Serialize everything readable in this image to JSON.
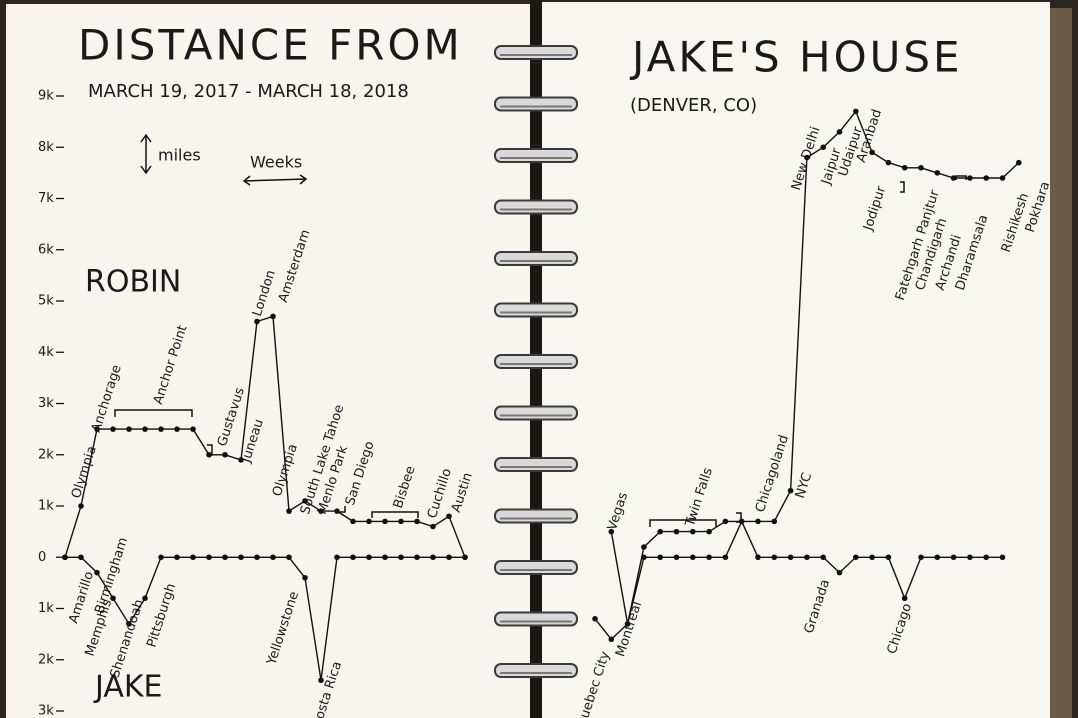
{
  "chart_data": {
    "type": "line",
    "title": [
      "DISTANCE FROM",
      "JAKE'S HOUSE"
    ],
    "subtitle": "MARCH 19, 2017 - MARCH 18, 2018",
    "location": "(DENVER, CO)",
    "ylabel": "miles",
    "xlabel": "Weeks",
    "ylim": [
      -3000,
      9000
    ],
    "yticks": [
      {
        "value": 9000,
        "label": "9k"
      },
      {
        "value": 8000,
        "label": "8k"
      },
      {
        "value": 7000,
        "label": "7k"
      },
      {
        "value": 6000,
        "label": "6k"
      },
      {
        "value": 5000,
        "label": "5k"
      },
      {
        "value": 4000,
        "label": "4k"
      },
      {
        "value": 3000,
        "label": "3k"
      },
      {
        "value": 2000,
        "label": "2k"
      },
      {
        "value": 1000,
        "label": "1k"
      },
      0,
      {
        "value": -1000,
        "label": "1k"
      },
      {
        "value": -2000,
        "label": "2k"
      },
      {
        "value": -3000,
        "label": "3k"
      }
    ],
    "series": [
      {
        "name": "ROBIN",
        "color": "#111111",
        "values": [
          0,
          1000,
          2500,
          2500,
          2500,
          2500,
          2500,
          2500,
          2500,
          2000,
          2000,
          1900,
          4600,
          4700,
          900,
          1100,
          900,
          900,
          700,
          700,
          700,
          700,
          700,
          600,
          800,
          0,
          null,
          500,
          -1300,
          200,
          500,
          500,
          500,
          500,
          700,
          700,
          700,
          700,
          1300,
          7800,
          8000,
          8300,
          8700,
          7900,
          7700,
          7600,
          7600,
          7500,
          7400,
          7400,
          7400,
          7400,
          7700
        ]
      },
      {
        "name": "JAKE",
        "color": "#111111",
        "values": [
          0,
          0,
          -300,
          -800,
          -1300,
          -800,
          0,
          0,
          0,
          0,
          0,
          0,
          0,
          0,
          0,
          -400,
          -2400,
          0,
          0,
          0,
          0,
          0,
          0,
          0,
          0,
          0,
          -1200,
          -1600,
          -1300,
          0,
          0,
          0,
          0,
          0,
          0,
          700,
          0,
          0,
          0,
          0,
          0,
          -300,
          0,
          0,
          0,
          -800,
          0,
          0,
          0,
          0,
          0,
          0,
          null
        ]
      }
    ],
    "annotations": [
      "Olympia",
      "Anchorage",
      "Anchor Point",
      "Gustavus",
      "Juneau",
      "London",
      "Amsterdam",
      "Olympia",
      "South Lake Tahoe",
      "Menlo Park",
      "San Diego",
      "Bisbee",
      "Cuchillo",
      "Austin",
      "Amarillo",
      "Memphis",
      "Birmingham",
      "Shenandoah",
      "Pittsburgh",
      "Yellowstone",
      "Costa Rica",
      "Vegas",
      "Twin Falls",
      "Chicagoland",
      "NYC",
      "New Delhi",
      "Jaipur",
      "Udaipur",
      "Aranbad",
      "Jodipur",
      "Fatehgarh Panjtur",
      "Chandigarh",
      "Archandi",
      "Dharamsala",
      "Rishikesh",
      "Pokhara",
      "Quebec City",
      "Montreal",
      "Granada",
      "Chicago"
    ]
  }
}
